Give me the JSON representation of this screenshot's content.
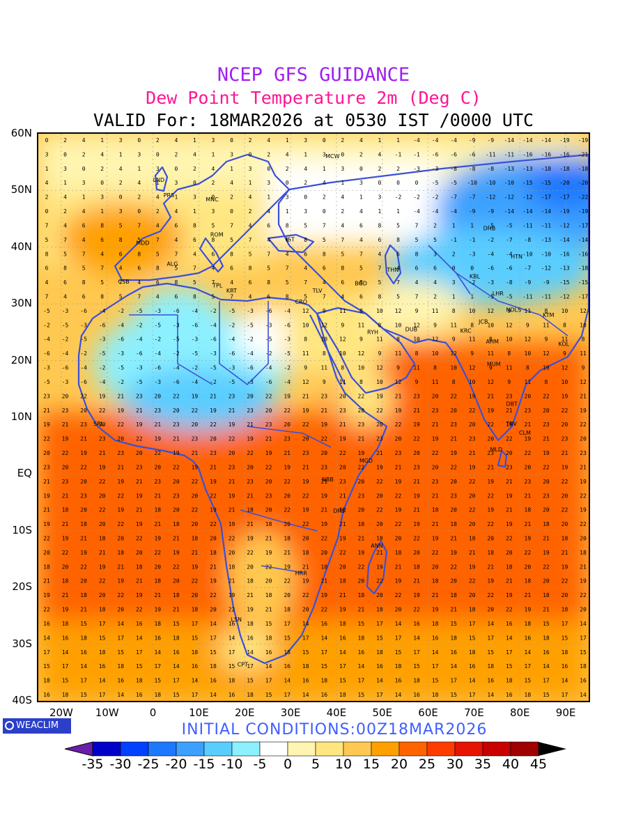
{
  "titles": {
    "line1": "NCEP GFS GUIDANCE",
    "line2": "Dew Point Temperature 2m (Deg C)",
    "line3": "VALID For: 18MAR2026 at 0530 IST /0000 UTC"
  },
  "axes": {
    "y_labels": [
      "60N",
      "50N",
      "40N",
      "30N",
      "20N",
      "10N",
      "EQ",
      "10S",
      "20S",
      "30S",
      "40S"
    ],
    "x_labels": [
      "20W",
      "10W",
      "0",
      "10E",
      "20E",
      "30E",
      "40E",
      "50E",
      "60E",
      "70E",
      "80E",
      "90E"
    ]
  },
  "map": {
    "lon_range": [
      -25,
      95
    ],
    "lat_range": [
      -40,
      60
    ],
    "stations": [
      "MCW",
      "LND",
      "PRS",
      "MNC",
      "ROM",
      "MDD",
      "IST",
      "DHB",
      "HTN",
      "THN",
      "ALG",
      "CSB",
      "TPL",
      "KRT",
      "BGD",
      "KBL",
      "LHR",
      "CRO",
      "TLV",
      "JCB",
      "NDLS",
      "KTM",
      "RYH",
      "DUB",
      "KRC",
      "AHM",
      "KOL",
      "MUM",
      "DBT",
      "TRV",
      "CLM",
      "MLD",
      "SRL",
      "MGD",
      "NBB",
      "DRS",
      "ANN",
      "HRR",
      "LSN",
      "CPT"
    ]
  },
  "legend": {
    "labels": [
      "-35",
      "-30",
      "-25",
      "-20",
      "-15",
      "-10",
      "-5",
      "0",
      "5",
      "10",
      "15",
      "20",
      "25",
      "30",
      "35",
      "40",
      "45"
    ],
    "colors": [
      "#6a1fa8",
      "#0000c8",
      "#0040ff",
      "#1e78ff",
      "#3ca0ff",
      "#5acdff",
      "#8cf0ff",
      "#ffffff",
      "#fff5b0",
      "#ffe680",
      "#ffc850",
      "#ffa000",
      "#ff6400",
      "#ff3c00",
      "#e61400",
      "#c80000",
      "#a00000",
      "#000000"
    ]
  },
  "footer": {
    "logo": "WEACLIM",
    "initial_conditions": "INITIAL CONDITIONS:00Z18MAR2026"
  }
}
